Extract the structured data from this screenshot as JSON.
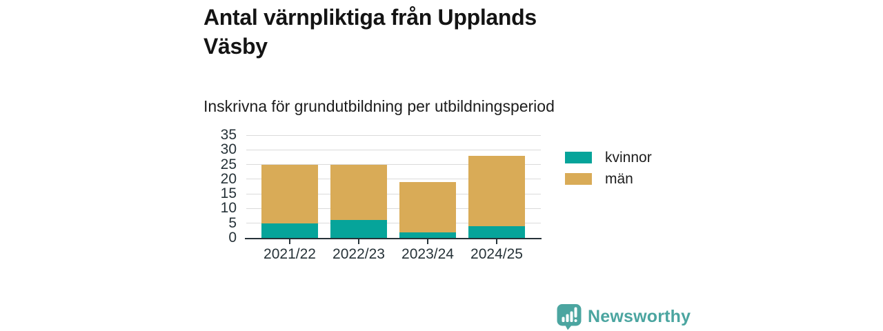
{
  "chart_data": {
    "type": "bar",
    "stacked": true,
    "title": "Antal värnpliktiga från Upplands Väsby",
    "subtitle": "Inskrivna för grundutbildning per utbildningsperiod",
    "categories": [
      "2021/22",
      "2022/23",
      "2023/24",
      "2024/25"
    ],
    "series": [
      {
        "name": "kvinnor",
        "color": "#06a49a",
        "values": [
          5,
          6,
          2,
          4
        ]
      },
      {
        "name": "män",
        "color": "#d9ab57",
        "values": [
          20,
          19,
          17,
          24
        ]
      }
    ],
    "stack_totals": [
      25,
      25,
      19,
      28
    ],
    "ylim": [
      0,
      35
    ],
    "yticks": [
      0,
      5,
      10,
      15,
      20,
      25,
      30,
      35
    ],
    "grid": true,
    "legend_position": "right"
  },
  "colors": {
    "axis": "#263238",
    "gridline": "#dadada",
    "brand_teal": "#4ba5a0"
  },
  "footer": {
    "brand": "Newsworthy"
  }
}
